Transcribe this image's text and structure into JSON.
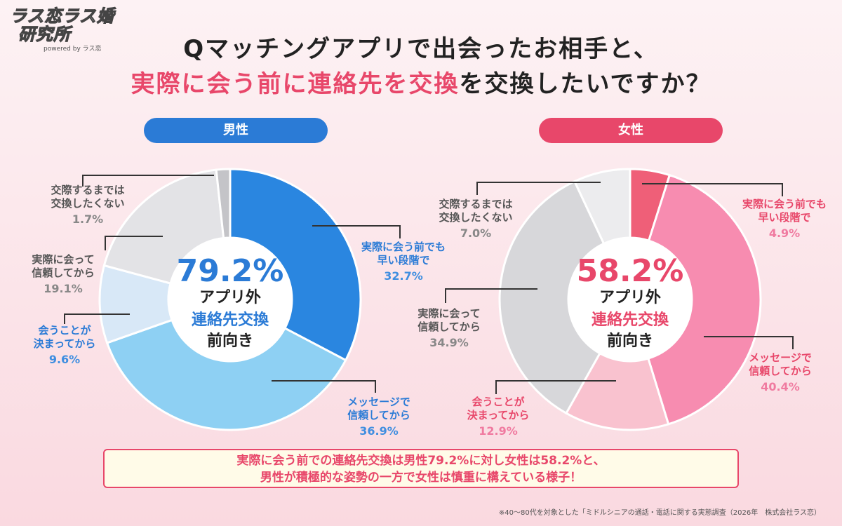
{
  "logo": {
    "line1": "ラス恋ラス婚",
    "line2": "研究所",
    "line3": "powered by ラス恋"
  },
  "title": {
    "line1": "Qマッチングアプリで出会ったお相手と、",
    "line2_highlight": "実際に会う前に連絡先を交換",
    "line2_rest": "を交換したいですか？"
  },
  "colors": {
    "male_accent": "#2b7bd6",
    "female_accent": "#e8476a"
  },
  "chart_data": [
    {
      "type": "pie",
      "panel_label": "男性",
      "center": {
        "value": "79.2%",
        "line1": "アプリ外",
        "line2": "連絡先交換",
        "line3": "前向き"
      },
      "slices": [
        {
          "name_lines": [
            "実際に会う前でも",
            "早い段階で"
          ],
          "value": 32.7,
          "label": "32.7%",
          "color": "#2a86e0"
        },
        {
          "name_lines": [
            "メッセージで",
            "信頼してから"
          ],
          "value": 36.9,
          "label": "36.9%",
          "color": "#8ed0f3"
        },
        {
          "name_lines": [
            "会うことが",
            "決まってから"
          ],
          "value": 9.6,
          "label": "9.6%",
          "color": "#d8e8f7"
        },
        {
          "name_lines": [
            "実際に会って",
            "信頼してから"
          ],
          "value": 19.1,
          "label": "19.1%",
          "color": "#e3e3e6"
        },
        {
          "name_lines": [
            "交際するまでは",
            "交換したくない"
          ],
          "value": 1.7,
          "label": "1.7%",
          "color": "#c4c4c8"
        }
      ]
    },
    {
      "type": "pie",
      "panel_label": "女性",
      "center": {
        "value": "58.2%",
        "line1": "アプリ外",
        "line2": "連絡先交換",
        "line3": "前向き"
      },
      "slices": [
        {
          "name_lines": [
            "実際に会う前でも",
            "早い段階で"
          ],
          "value": 4.9,
          "label": "4.9%",
          "color": "#ef5f78"
        },
        {
          "name_lines": [
            "メッセージで",
            "信頼してから"
          ],
          "value": 40.4,
          "label": "40.4%",
          "color": "#f78cb0"
        },
        {
          "name_lines": [
            "会うことが",
            "決まってから"
          ],
          "value": 12.9,
          "label": "12.9%",
          "color": "#f9c2cf"
        },
        {
          "name_lines": [
            "実際に会って",
            "信頼してから"
          ],
          "value": 34.9,
          "label": "34.9%",
          "color": "#d7d7da"
        },
        {
          "name_lines": [
            "交際するまでは",
            "交換したくない"
          ],
          "value": 7.0,
          "label": "7.0%",
          "color": "#ececee"
        }
      ]
    }
  ],
  "summary": {
    "line1": "実際に会う前での連絡先交換は男性79.2%に対し女性は58.2%と、",
    "line2": "男性が積極的な姿勢の一方で女性は慎重に構えている様子！"
  },
  "footnote": "※40〜80代を対象とした「ミドルシニアの通話・電話に関する実態調査（2026年　株式会社ラス恋）"
}
